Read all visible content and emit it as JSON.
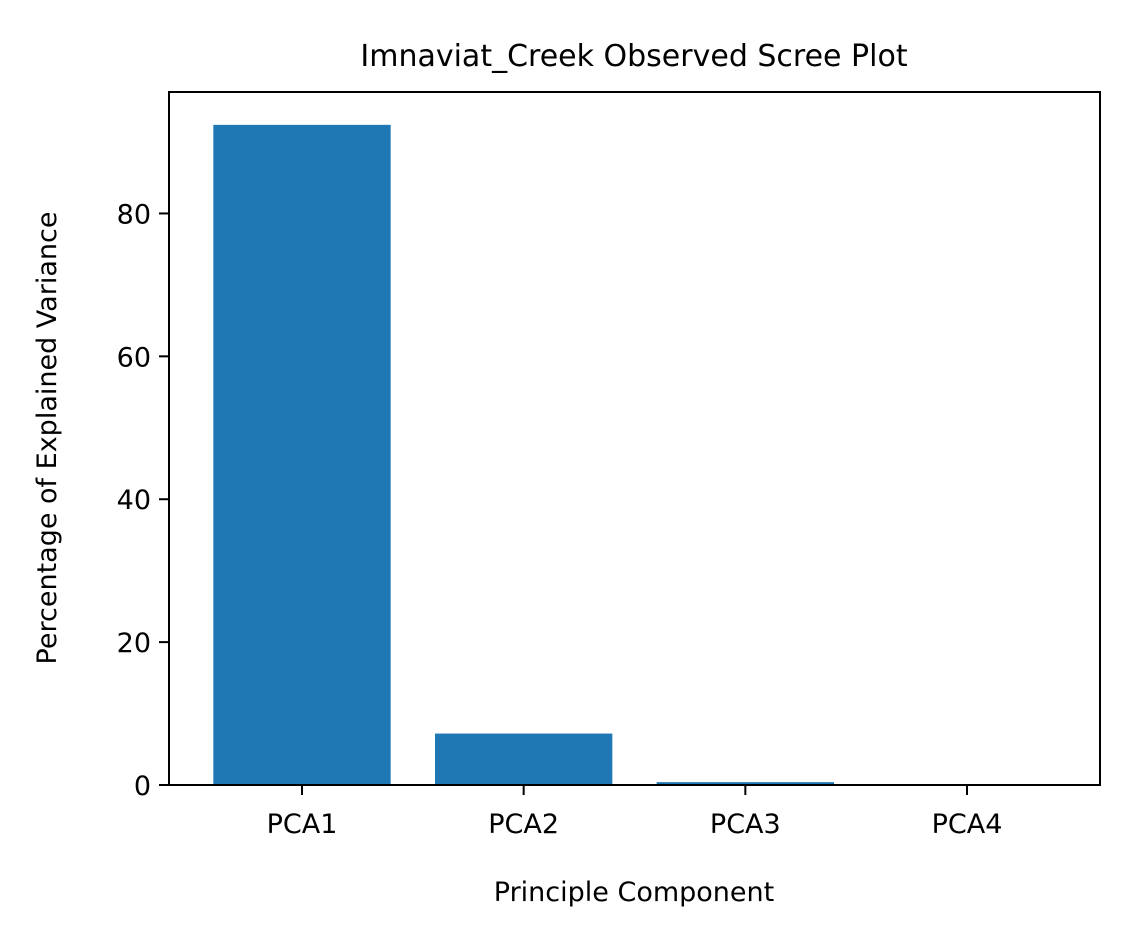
{
  "chart_data": {
    "type": "bar",
    "title": "Imnaviat_Creek Observed Scree Plot",
    "xlabel": "Principle Component",
    "ylabel": "Percentage of Explained Variance",
    "categories": [
      "PCA1",
      "PCA2",
      "PCA3",
      "PCA4"
    ],
    "values": [
      92.4,
      7.2,
      0.4,
      0.0
    ],
    "ylim": [
      0,
      97.0
    ],
    "yticks": [
      0,
      20,
      40,
      60,
      80
    ],
    "grid": false,
    "legend": "none",
    "bar_color": "#1f77b4"
  }
}
